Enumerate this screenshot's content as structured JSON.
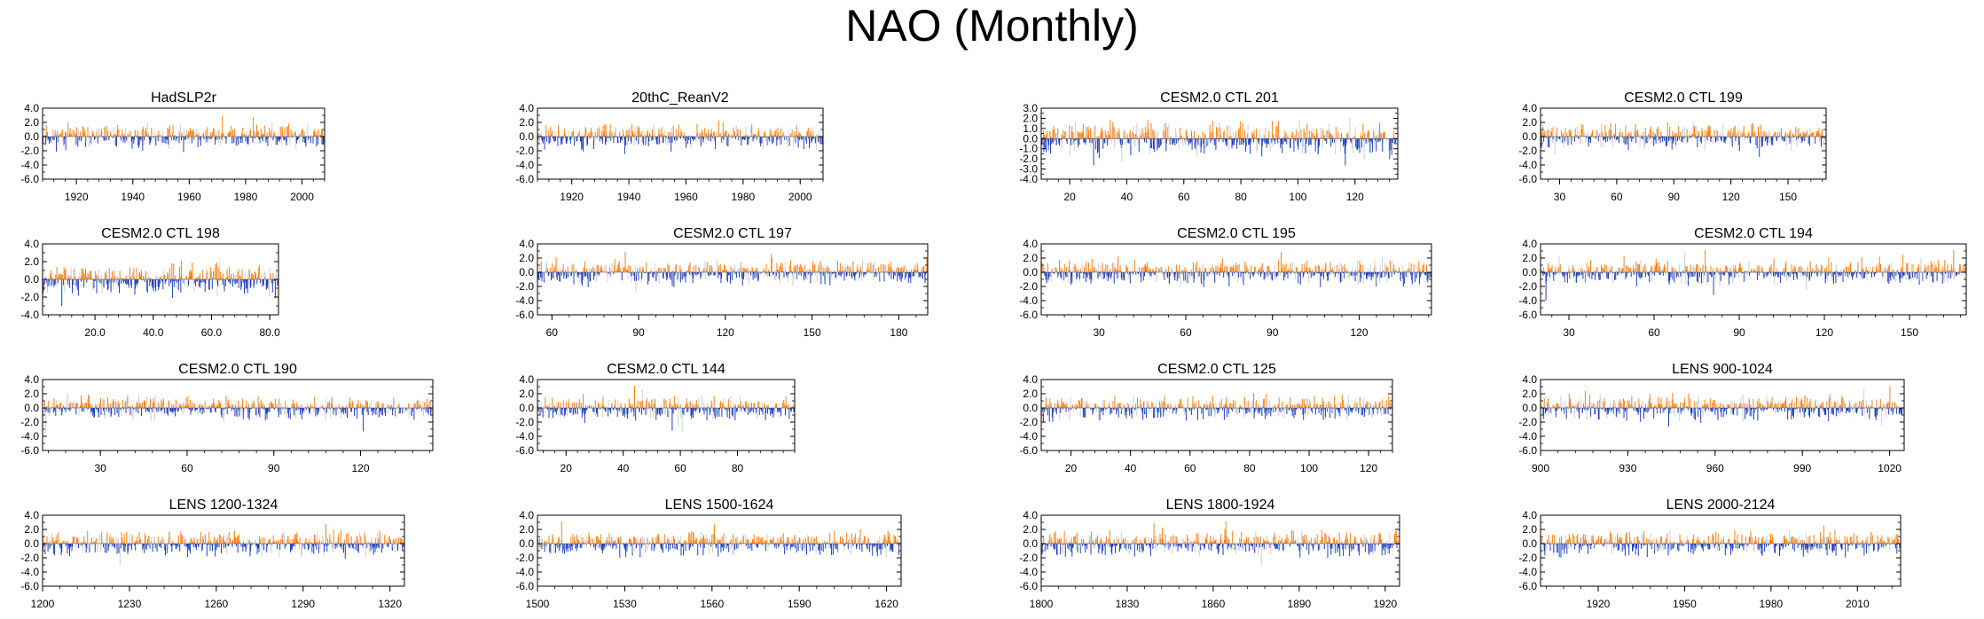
{
  "title": "NAO (Monthly)",
  "colors": {
    "positive": "#ff7f0e",
    "negative": "#1f3fbf",
    "light": "#cfcfcf",
    "frame": "#000000"
  },
  "chart_data": [
    {
      "type": "bar",
      "title": "HadSLP2r",
      "ylim": [
        -6.0,
        4.0
      ],
      "yticks": [
        "4.0",
        "2.0",
        "0.0",
        "-2.0",
        "-4.0",
        "-6.0"
      ],
      "xlim": [
        1908,
        2008
      ],
      "xticks": [
        "1920",
        "1940",
        "1960",
        "1980",
        "2000"
      ],
      "seed": 11
    },
    {
      "type": "bar",
      "title": "20thC_ReanV2",
      "ylim": [
        -6.0,
        4.0
      ],
      "yticks": [
        "4.0",
        "2.0",
        "0.0",
        "-2.0",
        "-4.0",
        "-6.0"
      ],
      "xlim": [
        1908,
        2008
      ],
      "xticks": [
        "1920",
        "1940",
        "1960",
        "1980",
        "2000"
      ],
      "seed": 23
    },
    {
      "type": "bar",
      "title": "CESM2.0 CTL 201",
      "ylim": [
        -4.0,
        3.0
      ],
      "yticks": [
        "3.0",
        "2.0",
        "1.0",
        "0.0",
        "-1.0",
        "-2.0",
        "-3.0",
        "-4.0"
      ],
      "xlim": [
        10,
        135
      ],
      "xticks": [
        "20",
        "40",
        "60",
        "80",
        "100",
        "120"
      ],
      "seed": 37
    },
    {
      "type": "bar",
      "title": "CESM2.0 CTL 199",
      "ylim": [
        -6.0,
        4.0
      ],
      "yticks": [
        "4.0",
        "2.0",
        "0.0",
        "-2.0",
        "-4.0",
        "-6.0"
      ],
      "xlim": [
        20,
        170
      ],
      "xticks": [
        "30",
        "60",
        "90",
        "120",
        "150"
      ],
      "seed": 41
    },
    {
      "type": "bar",
      "title": "CESM2.0 CTL 198",
      "ylim": [
        -4.0,
        4.0
      ],
      "yticks": [
        "4.0",
        "2.0",
        "0.0",
        "-2.0",
        "-4.0"
      ],
      "xlim": [
        2,
        83
      ],
      "xticks": [
        "20.0",
        "40.0",
        "60.0",
        "80.0"
      ],
      "seed": 53
    },
    {
      "type": "bar",
      "title": "CESM2.0 CTL 197",
      "ylim": [
        -6.0,
        4.0
      ],
      "yticks": [
        "4.0",
        "2.0",
        "0.0",
        "-2.0",
        "-4.0",
        "-6.0"
      ],
      "xlim": [
        55,
        190
      ],
      "xticks": [
        "60",
        "90",
        "120",
        "150",
        "180"
      ],
      "seed": 67
    },
    {
      "type": "bar",
      "title": "CESM2.0 CTL 195",
      "ylim": [
        -6.0,
        4.0
      ],
      "yticks": [
        "4.0",
        "2.0",
        "0.0",
        "-2.0",
        "-4.0",
        "-6.0"
      ],
      "xlim": [
        10,
        145
      ],
      "xticks": [
        "30",
        "60",
        "90",
        "120"
      ],
      "seed": 71
    },
    {
      "type": "bar",
      "title": "CESM2.0 CTL 194",
      "ylim": [
        -6.0,
        4.0
      ],
      "yticks": [
        "4.0",
        "2.0",
        "0.0",
        "-2.0",
        "-4.0",
        "-6.0"
      ],
      "xlim": [
        20,
        170
      ],
      "xticks": [
        "30",
        "60",
        "90",
        "120",
        "150"
      ],
      "seed": 83
    },
    {
      "type": "bar",
      "title": "CESM2.0 CTL 190",
      "ylim": [
        -6.0,
        4.0
      ],
      "yticks": [
        "4.0",
        "2.0",
        "0.0",
        "-2.0",
        "-4.0",
        "-6.0"
      ],
      "xlim": [
        10,
        145
      ],
      "xticks": [
        "30",
        "60",
        "90",
        "120"
      ],
      "seed": 97
    },
    {
      "type": "bar",
      "title": "CESM2.0 CTL 144",
      "ylim": [
        -6.0,
        4.0
      ],
      "yticks": [
        "4.0",
        "2.0",
        "0.0",
        "-2.0",
        "-4.0",
        "-6.0"
      ],
      "xlim": [
        10,
        100
      ],
      "xticks": [
        "20",
        "40",
        "60",
        "80"
      ],
      "seed": 101
    },
    {
      "type": "bar",
      "title": "CESM2.0 CTL 125",
      "ylim": [
        -6.0,
        4.0
      ],
      "yticks": [
        "4.0",
        "2.0",
        "0.0",
        "-2.0",
        "-4.0",
        "-6.0"
      ],
      "xlim": [
        10,
        128
      ],
      "xticks": [
        "20",
        "40",
        "60",
        "80",
        "100",
        "120"
      ],
      "seed": 113
    },
    {
      "type": "bar",
      "title": "LENS 900-1024",
      "ylim": [
        -6.0,
        4.0
      ],
      "yticks": [
        "4.0",
        "2.0",
        "0.0",
        "-2.0",
        "-4.0",
        "-6.0"
      ],
      "xlim": [
        900,
        1025
      ],
      "xticks": [
        "900",
        "930",
        "960",
        "990",
        "1020"
      ],
      "seed": 127
    },
    {
      "type": "bar",
      "title": "LENS 1200-1324",
      "ylim": [
        -6.0,
        4.0
      ],
      "yticks": [
        "4.0",
        "2.0",
        "0.0",
        "-2.0",
        "-4.0",
        "-6.0"
      ],
      "xlim": [
        1200,
        1325
      ],
      "xticks": [
        "1200",
        "1230",
        "1260",
        "1290",
        "1320"
      ],
      "seed": 131
    },
    {
      "type": "bar",
      "title": "LENS 1500-1624",
      "ylim": [
        -6.0,
        4.0
      ],
      "yticks": [
        "4.0",
        "2.0",
        "0.0",
        "-2.0",
        "-4.0",
        "-6.0"
      ],
      "xlim": [
        1500,
        1625
      ],
      "xticks": [
        "1500",
        "1530",
        "1560",
        "1590",
        "1620"
      ],
      "seed": 149
    },
    {
      "type": "bar",
      "title": "LENS 1800-1924",
      "ylim": [
        -6.0,
        4.0
      ],
      "yticks": [
        "4.0",
        "2.0",
        "0.0",
        "-2.0",
        "-4.0",
        "-6.0"
      ],
      "xlim": [
        1800,
        1925
      ],
      "xticks": [
        "1800",
        "1830",
        "1860",
        "1890",
        "1920"
      ],
      "seed": 157
    },
    {
      "type": "bar",
      "title": "LENS 2000-2124",
      "ylim": [
        -6.0,
        4.0
      ],
      "yticks": [
        "4.0",
        "2.0",
        "0.0",
        "-2.0",
        "-4.0",
        "-6.0"
      ],
      "xlim": [
        1900,
        2025
      ],
      "xticks": [
        "1920",
        "1950",
        "1980",
        "2010"
      ],
      "seed": 163
    }
  ]
}
